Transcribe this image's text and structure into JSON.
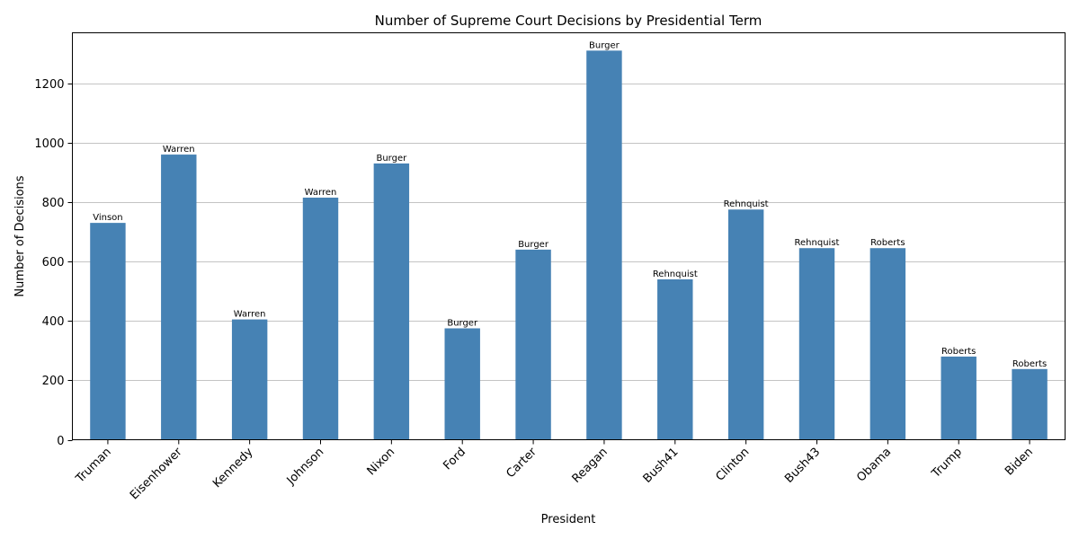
{
  "chart_data": {
    "type": "bar",
    "title": "Number of Supreme Court Decisions by Presidential Term",
    "xlabel": "President",
    "ylabel": "Number of Decisions",
    "categories": [
      "Truman",
      "Eisenhower",
      "Kennedy",
      "Johnson",
      "Nixon",
      "Ford",
      "Carter",
      "Reagan",
      "Bush41",
      "Clinton",
      "Bush43",
      "Obama",
      "Trump",
      "Biden"
    ],
    "values": [
      730,
      960,
      405,
      815,
      930,
      375,
      640,
      1310,
      540,
      775,
      645,
      645,
      280,
      238
    ],
    "bar_labels": [
      "Vinson",
      "Warren",
      "Warren",
      "Warren",
      "Burger",
      "Burger",
      "Burger",
      "Burger",
      "Rehnquist",
      "Rehnquist",
      "Rehnquist",
      "Roberts",
      "Roberts",
      "Roberts"
    ],
    "ylim": [
      0,
      1370
    ],
    "yticks": [
      0,
      200,
      400,
      600,
      800,
      1000,
      1200
    ],
    "grid": "horizontal",
    "bar_color": "#4682b4"
  }
}
